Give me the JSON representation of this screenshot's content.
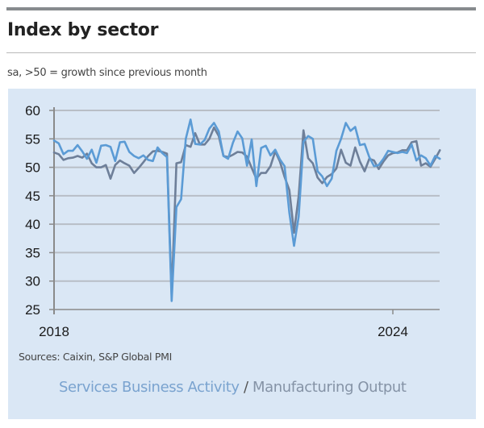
{
  "header": {
    "title": "Index by sector",
    "subtitle": "sa, >50 = growth since previous month"
  },
  "footer": {
    "sources": "Sources: Caixin, S&P Global PMI"
  },
  "legend": {
    "services_label": "Services Business Activity",
    "separator": " / ",
    "manufacturing_label": "Manufacturing Output"
  },
  "colors": {
    "panel_bg": "#dae7f5",
    "services": "#5b9bd5",
    "manufacturing": "#6e7f99",
    "gridline": "#b8bec6",
    "axis": "#8a8a8a"
  },
  "chart_data": {
    "type": "line",
    "title": "Index by sector",
    "subtitle": "sa, >50 = growth since previous month",
    "xlabel": "",
    "ylabel": "",
    "x_start": "2018-01",
    "x_frequency": "monthly",
    "x_tick_labels": [
      "2018",
      "2024"
    ],
    "x_tick_values": [
      0,
      72
    ],
    "ylim": [
      25,
      60
    ],
    "y_ticks": [
      25,
      30,
      35,
      40,
      45,
      50,
      55,
      60
    ],
    "grid": true,
    "legend_position": "bottom",
    "series": [
      {
        "name": "Services Business Activity",
        "values": [
          54.7,
          54.2,
          52.3,
          52.9,
          52.9,
          53.9,
          52.8,
          51.5,
          53.1,
          50.8,
          53.8,
          53.9,
          53.6,
          51.1,
          54.4,
          54.5,
          52.7,
          52.0,
          51.6,
          52.1,
          51.3,
          51.1,
          53.5,
          52.5,
          51.8,
          26.5,
          43.0,
          44.4,
          55.0,
          58.4,
          54.1,
          54.0,
          54.8,
          56.8,
          57.8,
          56.3,
          52.0,
          51.5,
          54.3,
          56.3,
          55.1,
          50.3,
          54.9,
          46.7,
          53.4,
          53.8,
          52.1,
          53.1,
          51.4,
          50.2,
          42.0,
          36.2,
          41.4,
          54.5,
          55.5,
          55.0,
          49.3,
          48.4,
          46.7,
          48.0,
          52.9,
          55.0,
          57.8,
          56.4,
          57.1,
          53.9,
          54.1,
          51.8,
          50.2,
          50.4,
          51.5,
          52.9,
          52.7,
          52.5,
          52.7,
          52.5,
          54.0,
          51.2,
          52.1,
          51.6,
          50.3,
          52.0,
          51.5
        ]
      },
      {
        "name": "Manufacturing Output",
        "values": [
          52.6,
          52.3,
          51.3,
          51.6,
          51.7,
          52.0,
          51.7,
          52.4,
          50.7,
          50.0,
          50.0,
          50.4,
          48.0,
          50.4,
          51.2,
          50.7,
          50.3,
          49.0,
          49.9,
          50.9,
          52.0,
          52.8,
          52.9,
          52.7,
          52.4,
          27.6,
          50.7,
          50.9,
          53.9,
          53.6,
          56.0,
          54.0,
          54.0,
          55.0,
          57.0,
          55.5,
          52.0,
          51.8,
          52.2,
          52.7,
          52.6,
          51.9,
          49.9,
          48.0,
          49.0,
          49.0,
          50.2,
          52.8,
          51.0,
          48.3,
          46.0,
          38.5,
          45.0,
          56.5,
          51.6,
          50.7,
          48.2,
          47.2,
          48.3,
          48.8,
          49.8,
          53.1,
          50.8,
          50.3,
          53.5,
          51.0,
          49.3,
          51.5,
          51.2,
          49.7,
          51.0,
          52.1,
          52.5,
          52.6,
          53.0,
          53.0,
          54.4,
          54.6,
          50.3,
          50.7,
          50.1,
          51.5,
          53.0
        ]
      }
    ]
  }
}
